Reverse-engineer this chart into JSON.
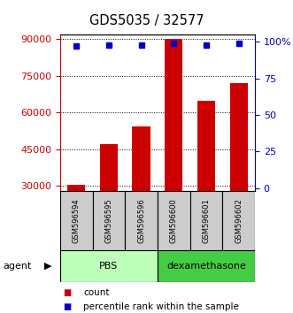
{
  "title": "GDS5035 / 32577",
  "samples": [
    "GSM596594",
    "GSM596595",
    "GSM596596",
    "GSM596600",
    "GSM596601",
    "GSM596602"
  ],
  "counts": [
    30500,
    47000,
    54500,
    90000,
    65000,
    72000
  ],
  "percentiles": [
    97,
    98,
    98,
    99,
    98,
    99
  ],
  "groups": [
    {
      "label": "PBS",
      "indices": [
        0,
        1,
        2
      ],
      "color": "#bbffbb"
    },
    {
      "label": "dexamethasone",
      "indices": [
        3,
        4,
        5
      ],
      "color": "#44cc44"
    }
  ],
  "ylim_left": [
    28000,
    92000
  ],
  "ylim_right": [
    -2,
    105
  ],
  "yticks_left": [
    30000,
    45000,
    60000,
    75000,
    90000
  ],
  "yticks_right": [
    0,
    25,
    50,
    75,
    100
  ],
  "bar_color": "#cc0000",
  "dot_color": "#0000cc",
  "left_axis_color": "#cc0000",
  "right_axis_color": "#0000cc",
  "group_box_color": "#cccccc",
  "bar_width": 0.55
}
